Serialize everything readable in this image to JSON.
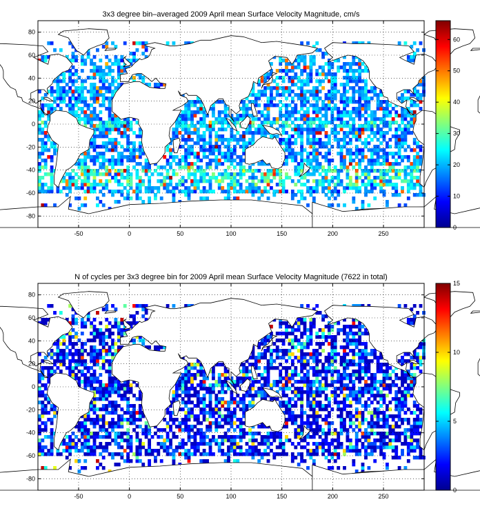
{
  "chart_data": [
    {
      "type": "heatmap",
      "title": "3x3 degree bin–averaged 2009 April mean Surface Velocity Magnitude, cm/s",
      "xlim": [
        -90,
        290
      ],
      "ylim": [
        -90,
        90
      ],
      "x_ticks": [
        -50,
        0,
        50,
        100,
        150,
        200,
        250
      ],
      "y_ticks": [
        80,
        60,
        40,
        20,
        0,
        -20,
        -40,
        -60,
        -80
      ],
      "colorbar": {
        "min": 0,
        "max": 66,
        "ticks": [
          0,
          10,
          20,
          30,
          40,
          50,
          60
        ],
        "colormap": "jet"
      },
      "grid": "dotted",
      "bin_size_deg": 3
    },
    {
      "type": "heatmap",
      "title": "N of cycles per 3x3 degree bin for 2009 April mean Surface Velocity Magnitude (7622 in total)",
      "xlim": [
        -90,
        290
      ],
      "ylim": [
        -90,
        90
      ],
      "x_ticks": [
        -50,
        0,
        50,
        100,
        150,
        200,
        250
      ],
      "y_ticks": [
        80,
        60,
        40,
        20,
        0,
        -20,
        -40,
        -60,
        -80
      ],
      "colorbar": {
        "min": 0,
        "max": 15,
        "ticks": [
          0,
          5,
          10,
          15
        ],
        "colormap": "jet"
      },
      "grid": "dotted",
      "bin_size_deg": 3
    }
  ]
}
